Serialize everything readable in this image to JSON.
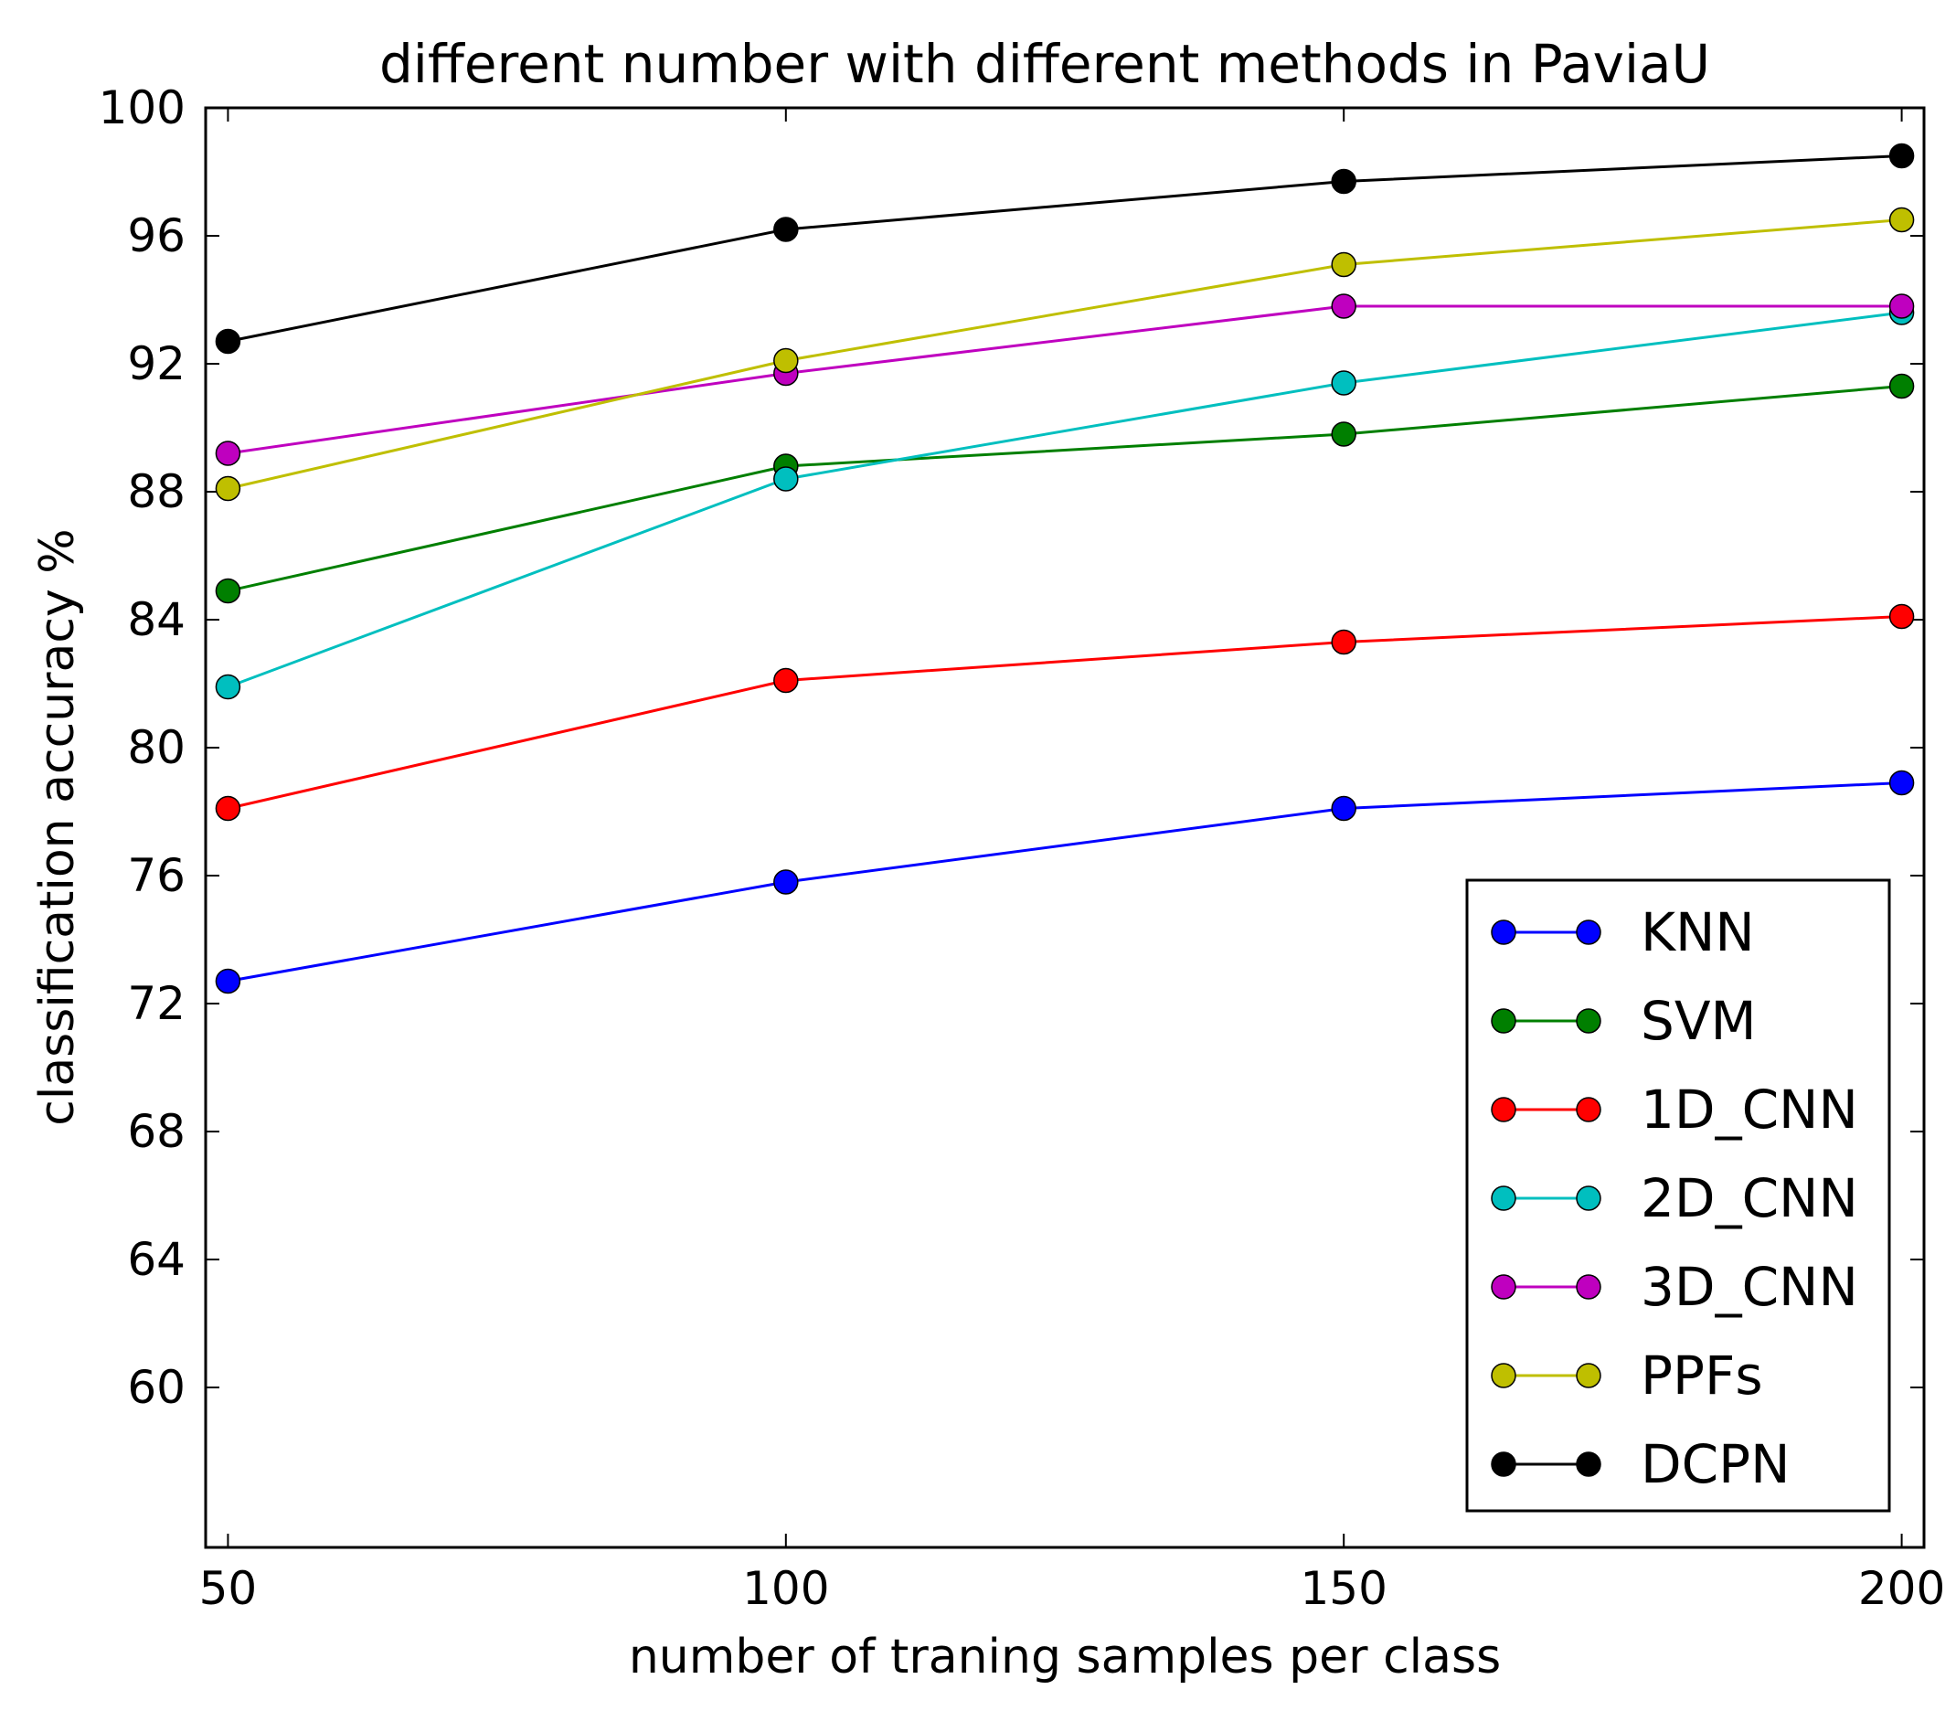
{
  "chart_data": {
    "type": "line",
    "title": "different number with different methods in PaviaU",
    "xlabel": "number of traning samples per class",
    "ylabel": "classification accuracy %",
    "x": [
      50,
      100,
      150,
      200
    ],
    "xticks": [
      "50",
      "100",
      "150",
      "200"
    ],
    "xlim": [
      48,
      202
    ],
    "yticks": [
      "60",
      "64",
      "68",
      "72",
      "76",
      "80",
      "84",
      "88",
      "92",
      "96",
      "100"
    ],
    "ytick_values": [
      60,
      64,
      68,
      72,
      76,
      80,
      84,
      88,
      92,
      96,
      100
    ],
    "ylim": [
      55,
      100
    ],
    "grid": false,
    "legend_position": "lower-right",
    "series": [
      {
        "name": "KNN",
        "color": "#0000ff",
        "values": [
          72.7,
          75.8,
          78.1,
          78.9
        ]
      },
      {
        "name": "SVM",
        "color": "#007f00",
        "values": [
          84.9,
          88.8,
          89.8,
          91.3
        ]
      },
      {
        "name": "1D_CNN",
        "color": "#ff0000",
        "values": [
          78.1,
          82.1,
          83.3,
          84.1
        ]
      },
      {
        "name": "2D_CNN",
        "color": "#00bfbf",
        "values": [
          81.9,
          88.4,
          91.4,
          93.6
        ]
      },
      {
        "name": "3D_CNN",
        "color": "#bf00bf",
        "values": [
          89.2,
          91.7,
          93.8,
          93.8
        ]
      },
      {
        "name": "PPFs",
        "color": "#bfbf00",
        "values": [
          88.1,
          92.1,
          95.1,
          96.5
        ]
      },
      {
        "name": "DCPN",
        "color": "#000000",
        "values": [
          92.7,
          96.2,
          97.7,
          98.5
        ]
      }
    ]
  }
}
